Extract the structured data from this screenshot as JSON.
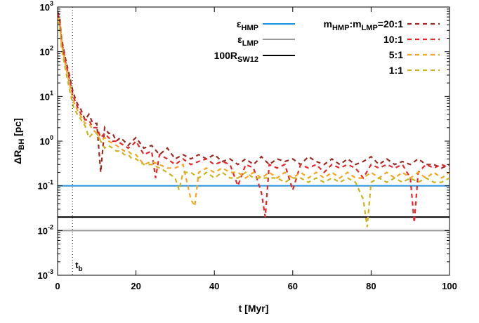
{
  "chart_data": {
    "type": "line",
    "xlabel": "t [Myr]",
    "ylabel_main": "ΔR",
    "ylabel_sub": "BH",
    "ylabel_unit": " [pc]",
    "xlim": [
      0,
      100
    ],
    "ylim": [
      0.001,
      1000
    ],
    "yscale": "log",
    "grid": false,
    "x_ticks": [
      0,
      20,
      40,
      60,
      80,
      100
    ],
    "y_tick_exponents": [
      -3,
      -2,
      -1,
      0,
      1,
      2,
      3
    ],
    "y_tick_base": "10",
    "legend_placement": "top-right",
    "reference_lines": [
      {
        "name_main": "ε",
        "name_sub": "HMP",
        "y": 0.1,
        "color": "#1f8fe0"
      },
      {
        "name_main": "ε",
        "name_sub": "LMP",
        "y": 0.01,
        "color": "#999999"
      },
      {
        "name_main": "100R",
        "name_sub": "SW12",
        "y": 0.02,
        "color": "#000000"
      }
    ],
    "vline": {
      "x": 3.8,
      "label_main": "t",
      "label_sub": "b"
    },
    "legend_header": {
      "a": "m",
      "a_sub": "HMP",
      "b": ":m",
      "b_sub": "LMP",
      "c": "=20:1"
    },
    "series": [
      {
        "name": "20:1",
        "color": "#9b2a24",
        "x": [
          0,
          0.5,
          1,
          2,
          3,
          4,
          5,
          6,
          7,
          8,
          9,
          10,
          11,
          12,
          13,
          14,
          15,
          16,
          17,
          18,
          19,
          20,
          22,
          24,
          26,
          28,
          30,
          32,
          34,
          36,
          38,
          40,
          42,
          44,
          46,
          48,
          50,
          52,
          54,
          56,
          58,
          60,
          62,
          64,
          66,
          68,
          70,
          72,
          74,
          76,
          78,
          80,
          82,
          84,
          86,
          88,
          90,
          92,
          94,
          96,
          98,
          100
        ],
        "y": [
          800,
          600,
          200,
          70,
          30,
          12,
          7,
          5,
          3,
          4,
          2.5,
          2.5,
          0.2,
          2,
          1.5,
          1.5,
          1,
          1.2,
          1,
          0.8,
          1,
          1.2,
          0.7,
          0.8,
          0.5,
          0.7,
          0.4,
          0.5,
          0.4,
          0.5,
          0.4,
          0.5,
          0.35,
          0.4,
          0.3,
          0.4,
          0.3,
          0.45,
          0.3,
          0.4,
          0.35,
          0.4,
          0.3,
          0.45,
          0.35,
          0.3,
          0.4,
          0.3,
          0.4,
          0.3,
          0.35,
          0.45,
          0.3,
          0.4,
          0.3,
          0.35,
          0.3,
          0.4,
          0.3,
          0.3,
          0.25,
          0.3
        ]
      },
      {
        "name": "10:1",
        "color": "#e8262a",
        "x": [
          0,
          0.5,
          1,
          2,
          3,
          4,
          5,
          6,
          7,
          8,
          9,
          10,
          11,
          12,
          13,
          14,
          15,
          16,
          17,
          18,
          19,
          20,
          22,
          24,
          25,
          26,
          28,
          30,
          32,
          34,
          36,
          38,
          40,
          42,
          44,
          46,
          48,
          50,
          52,
          53,
          54,
          56,
          58,
          60,
          62,
          64,
          66,
          68,
          70,
          72,
          74,
          76,
          78,
          80,
          82,
          84,
          86,
          88,
          90,
          91,
          92,
          94,
          96,
          98,
          100
        ],
        "y": [
          700,
          500,
          180,
          60,
          25,
          10,
          6,
          4,
          3,
          3,
          2,
          2,
          1.2,
          1.5,
          1.2,
          1,
          1,
          0.9,
          0.8,
          0.7,
          0.8,
          1,
          0.5,
          0.6,
          0.15,
          0.5,
          0.4,
          0.3,
          0.4,
          0.3,
          0.35,
          0.4,
          0.3,
          0.35,
          0.3,
          0.1,
          0.3,
          0.25,
          0.07,
          0.02,
          0.3,
          0.25,
          0.3,
          0.08,
          0.3,
          0.25,
          0.3,
          0.2,
          0.3,
          0.25,
          0.3,
          0.25,
          0.15,
          0.3,
          0.25,
          0.3,
          0.25,
          0.3,
          0.15,
          0.015,
          0.2,
          0.3,
          0.25,
          0.3,
          0.25
        ]
      },
      {
        "name": "5:1",
        "color": "#f5a623",
        "x": [
          0,
          0.5,
          1,
          2,
          3,
          4,
          5,
          6,
          7,
          8,
          9,
          10,
          11,
          12,
          13,
          14,
          15,
          16,
          17,
          18,
          19,
          20,
          22,
          24,
          26,
          28,
          30,
          32,
          34,
          35,
          36,
          38,
          40,
          42,
          44,
          46,
          48,
          50,
          52,
          54,
          56,
          58,
          60,
          62,
          64,
          66,
          68,
          70,
          72,
          74,
          76,
          78,
          80,
          82,
          84,
          86,
          88,
          90,
          92,
          94,
          96,
          98,
          100
        ],
        "y": [
          600,
          450,
          150,
          50,
          20,
          8,
          5,
          3.5,
          2.5,
          2.5,
          1.8,
          1.5,
          1,
          1.2,
          1,
          0.9,
          0.8,
          0.7,
          0.6,
          0.6,
          0.5,
          0.5,
          0.3,
          0.35,
          0.3,
          0.25,
          0.25,
          0.3,
          0.05,
          0.035,
          0.2,
          0.25,
          0.2,
          0.25,
          0.2,
          0.2,
          0.15,
          0.2,
          0.15,
          0.2,
          0.15,
          0.2,
          0.15,
          0.2,
          0.15,
          0.2,
          0.15,
          0.2,
          0.15,
          0.2,
          0.15,
          0.15,
          0.2,
          0.15,
          0.2,
          0.15,
          0.2,
          0.15,
          0.2,
          0.15,
          0.2,
          0.15,
          0.2
        ]
      },
      {
        "name": "1:1",
        "color": "#c9b520",
        "x": [
          0,
          0.5,
          1,
          2,
          3,
          4,
          5,
          6,
          7,
          8,
          9,
          10,
          11,
          12,
          13,
          14,
          15,
          16,
          17,
          18,
          19,
          20,
          22,
          24,
          26,
          28,
          30,
          31,
          32,
          34,
          36,
          38,
          40,
          42,
          44,
          46,
          48,
          50,
          52,
          54,
          56,
          58,
          60,
          62,
          64,
          66,
          68,
          70,
          72,
          74,
          76,
          78,
          79,
          80,
          82,
          84,
          86,
          88,
          90,
          92,
          94,
          96,
          98,
          100
        ],
        "y": [
          500,
          400,
          120,
          40,
          15,
          6,
          4,
          3,
          2.2,
          1.2,
          1.5,
          1.5,
          1,
          0.7,
          0.8,
          0.7,
          0.6,
          0.6,
          0.5,
          0.5,
          0.4,
          0.4,
          0.3,
          0.3,
          0.25,
          0.2,
          0.15,
          0.08,
          0.2,
          0.2,
          0.15,
          0.2,
          0.15,
          0.2,
          0.15,
          0.15,
          0.2,
          0.15,
          0.15,
          0.15,
          0.15,
          0.12,
          0.15,
          0.15,
          0.12,
          0.15,
          0.12,
          0.15,
          0.12,
          0.15,
          0.12,
          0.05,
          0.012,
          0.12,
          0.15,
          0.12,
          0.15,
          0.12,
          0.15,
          0.12,
          0.15,
          0.12,
          0.12,
          0.15
        ]
      }
    ]
  }
}
